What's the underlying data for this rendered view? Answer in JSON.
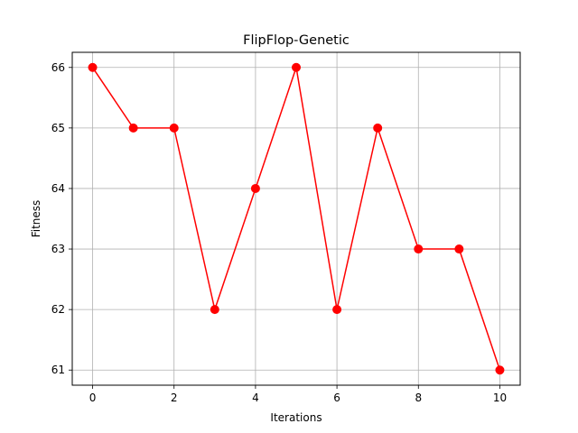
{
  "chart_data": {
    "type": "line",
    "title": "FlipFlop-Genetic",
    "xlabel": "Iterations",
    "ylabel": "Fitness",
    "x": [
      0,
      1,
      2,
      3,
      4,
      5,
      6,
      7,
      8,
      9,
      10
    ],
    "series": [
      {
        "values": [
          66,
          65,
          65,
          62,
          64,
          66,
          62,
          65,
          63,
          63,
          61
        ],
        "color": "#ff0000",
        "marker": "circle"
      }
    ],
    "xlim": [
      -0.5,
      10.5
    ],
    "ylim": [
      60.75,
      66.25
    ],
    "xticks": [
      0,
      2,
      4,
      6,
      8,
      10
    ],
    "yticks": [
      61,
      62,
      63,
      64,
      65,
      66
    ],
    "grid": true,
    "legend": "none"
  }
}
